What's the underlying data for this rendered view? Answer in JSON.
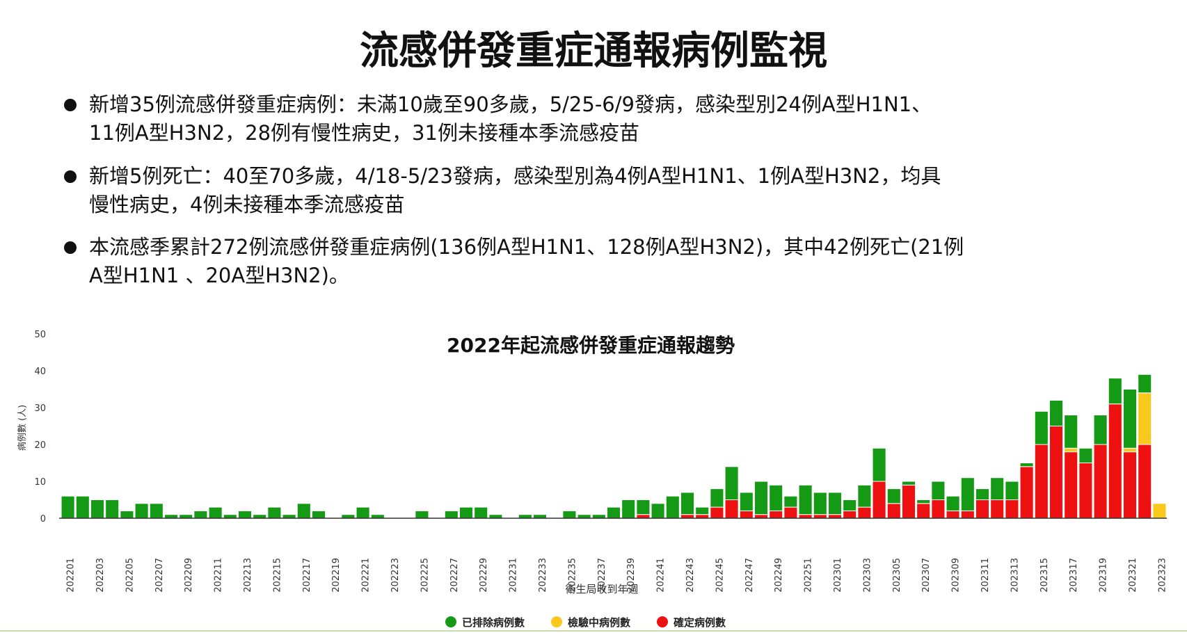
{
  "header": {
    "title": "流感併發重症通報病例監視"
  },
  "bullets": [
    [
      "新增35例流感併發重症病例：未滿10歲至90多歲，5/25-6/9發病，感染型別24例A型H1N1、",
      "11例A型H3N2，28例有慢性病史，31例未接種本季流感疫苗"
    ],
    [
      "新增5例死亡：40至70多歲，4/18-5/23發病，感染型別為4例A型H1N1、1例A型H3N2，均具",
      "慢性病史，4例未接種本季流感疫苗"
    ],
    [
      "本流感季累計272例流感併發重症病例(136例A型H1N1、128例A型H3N2)，其中42例死亡(21例",
      "A型H1N1 、20A型H3N2)。"
    ]
  ],
  "chart_data": {
    "type": "stacked_bar",
    "title": "2022年起流感併發重症通報趨勢",
    "xlabel": "衛生局收到年週",
    "ylabel": "病例數 (人)",
    "categories": [
      "202201",
      null,
      "202203",
      null,
      "202205",
      null,
      "202207",
      null,
      "202209",
      null,
      "202211",
      null,
      "202213",
      null,
      "202215",
      null,
      "202217",
      null,
      "202219",
      null,
      "202221",
      null,
      "202223",
      null,
      "202225",
      null,
      "202227",
      null,
      "202229",
      null,
      "202231",
      null,
      "202233",
      null,
      "202235",
      null,
      "202237",
      null,
      "202239",
      null,
      "202241",
      null,
      "202243",
      null,
      "202245",
      null,
      "202247",
      null,
      "202249",
      null,
      "202251",
      null,
      "202301",
      null,
      "202303",
      null,
      "202305",
      null,
      "202307",
      null,
      "202309",
      null,
      "202311",
      null,
      "202313",
      null,
      "202315",
      null,
      "202317",
      null,
      "202319",
      null,
      "202321",
      null,
      "202323"
    ],
    "series": [
      {
        "name": "已排除病例數",
        "color": "#149a14",
        "values": [
          6,
          6,
          5,
          5,
          2,
          4,
          4,
          1,
          1,
          2,
          3,
          1,
          2,
          1,
          3,
          1,
          4,
          2,
          0,
          1,
          3,
          1,
          0,
          0,
          2,
          0,
          2,
          3,
          3,
          1,
          0,
          1,
          1,
          0,
          2,
          1,
          1,
          3,
          5,
          4,
          4,
          6,
          6,
          2,
          5,
          9,
          5,
          9,
          7,
          3,
          8,
          6,
          6,
          3,
          6,
          9,
          4,
          1,
          1,
          5,
          4,
          9,
          3,
          6,
          5,
          1,
          9,
          7,
          9,
          4,
          8,
          7,
          16,
          5,
          0
        ]
      },
      {
        "name": "檢驗中病例數",
        "color": "#f8c81c",
        "values": [
          0,
          0,
          0,
          0,
          0,
          0,
          0,
          0,
          0,
          0,
          0,
          0,
          0,
          0,
          0,
          0,
          0,
          0,
          0,
          0,
          0,
          0,
          0,
          0,
          0,
          0,
          0,
          0,
          0,
          0,
          0,
          0,
          0,
          0,
          0,
          0,
          0,
          0,
          0,
          0,
          0,
          0,
          0,
          0,
          0,
          0,
          0,
          0,
          0,
          0,
          0,
          0,
          0,
          0,
          0,
          0,
          0,
          0,
          0,
          0,
          0,
          0,
          0,
          0,
          0,
          0,
          0,
          0,
          1,
          0,
          0,
          0,
          1,
          14,
          4
        ]
      },
      {
        "name": "確定病例數",
        "color": "#ee1111",
        "values": [
          0,
          0,
          0,
          0,
          0,
          0,
          0,
          0,
          0,
          0,
          0,
          0,
          0,
          0,
          0,
          0,
          0,
          0,
          0,
          0,
          0,
          0,
          0,
          0,
          0,
          0,
          0,
          0,
          0,
          0,
          0,
          0,
          0,
          0,
          0,
          0,
          0,
          0,
          0,
          1,
          0,
          0,
          1,
          1,
          3,
          5,
          2,
          1,
          2,
          3,
          1,
          1,
          1,
          2,
          3,
          10,
          4,
          9,
          4,
          5,
          2,
          2,
          5,
          5,
          5,
          14,
          20,
          25,
          18,
          15,
          20,
          31,
          18,
          20,
          0
        ]
      }
    ],
    "ylim": [
      0,
      50
    ],
    "yticks": [
      0,
      10,
      20,
      30,
      40,
      50
    ],
    "grid": false,
    "legend": "bottom"
  }
}
